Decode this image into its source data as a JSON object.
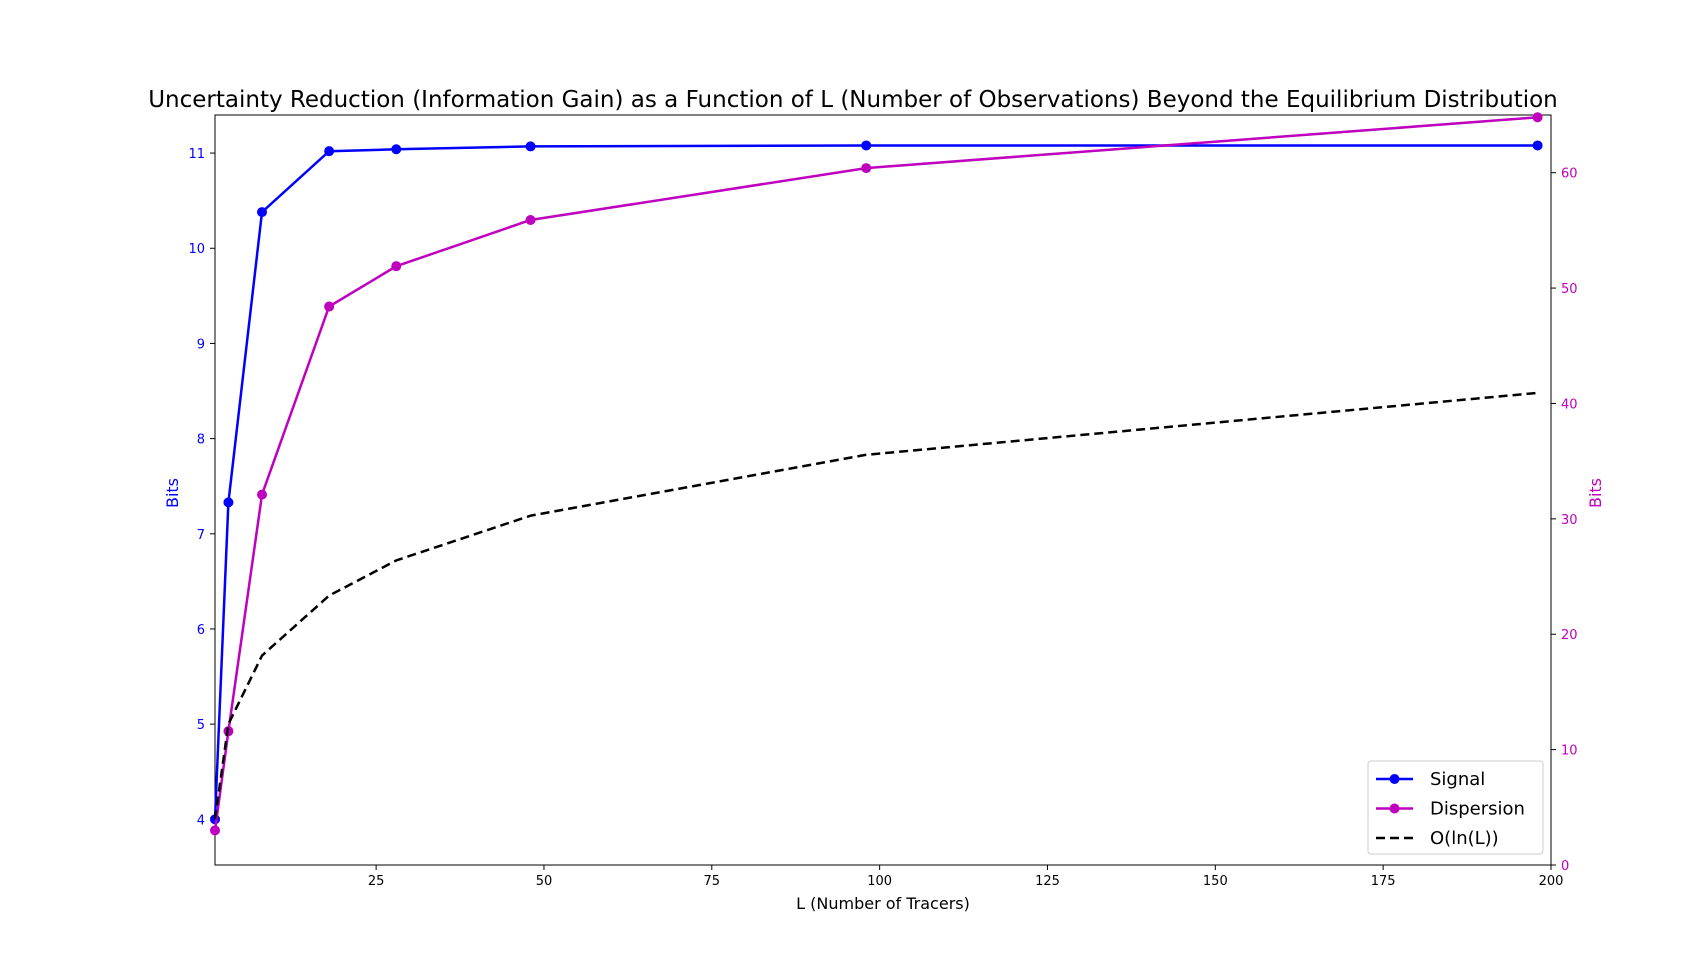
{
  "chart_data": {
    "type": "line",
    "title": "Uncertainty Reduction (Information Gain) as a Function of L (Number of Observations) Beyond the Equilibrium Distribution",
    "xlabel": "L (Number of Tracers)",
    "ylabel_left": "Bits",
    "ylabel_right": "Bits",
    "xlim": [
      1,
      200
    ],
    "ylim_left": [
      3.52,
      11.4
    ],
    "ylim_right": [
      0,
      65
    ],
    "x_ticks": [
      25,
      50,
      75,
      100,
      125,
      150,
      175,
      200
    ],
    "y_ticks_left": [
      4,
      5,
      6,
      7,
      8,
      9,
      10,
      11
    ],
    "y_ticks_right": [
      0,
      10,
      20,
      30,
      40,
      50,
      60
    ],
    "grid": false,
    "legend_position": "lower-right",
    "colors": {
      "left_axis": "#0000ff",
      "right_axis": "#bf00bf",
      "signal": "#0000ff",
      "dispersion": "#bf00bf",
      "ln": "#000000"
    },
    "series": [
      {
        "name": "Signal",
        "axis": "left",
        "style": "solid-marker",
        "x": [
          1,
          3,
          8,
          18,
          28,
          48,
          98,
          198
        ],
        "y": [
          4.0,
          7.33,
          10.38,
          11.02,
          11.04,
          11.07,
          11.08,
          11.08
        ]
      },
      {
        "name": "Dispersion",
        "axis": "right",
        "style": "solid-marker",
        "x": [
          1,
          3,
          8,
          18,
          28,
          48,
          98,
          198
        ],
        "y": [
          3.0,
          11.6,
          32.1,
          48.4,
          51.9,
          55.9,
          60.4,
          64.8
        ]
      },
      {
        "name": "O(ln(L))",
        "axis": "left",
        "style": "dashed",
        "x": [
          1,
          3,
          8,
          18,
          28,
          48,
          98,
          198
        ],
        "y": [
          4.0,
          5.0,
          5.72,
          6.35,
          6.72,
          7.19,
          7.83,
          8.48
        ]
      }
    ]
  }
}
